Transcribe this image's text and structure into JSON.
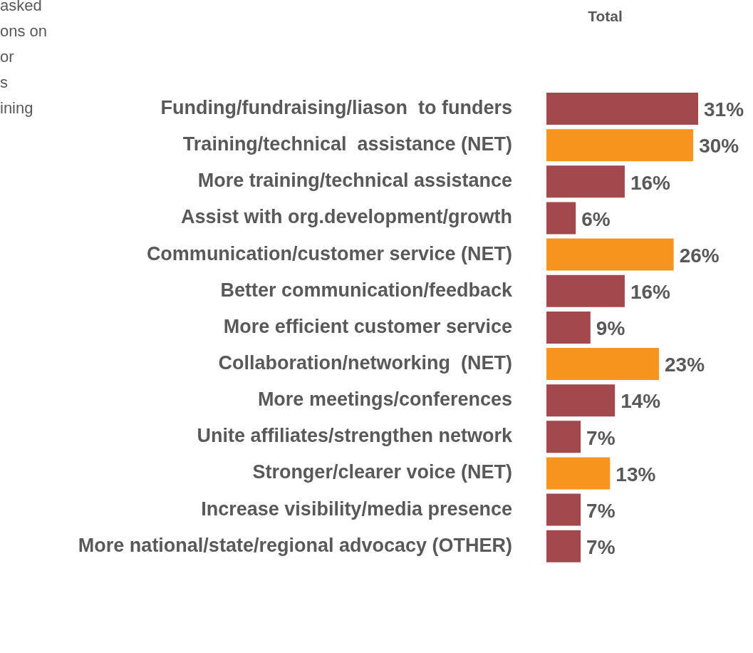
{
  "chart_data": {
    "type": "bar",
    "orientation": "horizontal",
    "title": "Total",
    "annotations": [
      "asked\nons on\nor\ns\nining"
    ],
    "categories": [
      "Funding/fundraising/liason  to funders",
      "Training/technical  assistance (NET)",
      "More training/technical assistance",
      "Assist with org.development/growth",
      "Communication/customer service (NET)",
      "Better communication/feedback",
      "More efficient customer service",
      "Collaboration/networking  (NET)",
      "More meetings/conferences",
      "Unite affiliates/strengthen network",
      "Stronger/clearer voice (NET)",
      "Increase visibility/media presence",
      "More national/state/regional advocacy (OTHER)"
    ],
    "values": [
      31,
      30,
      16,
      6,
      26,
      16,
      9,
      23,
      14,
      7,
      13,
      7,
      7
    ],
    "value_labels": [
      "31%",
      "30%",
      "16%",
      "6%",
      "26%",
      "16%",
      "9%",
      "23%",
      "14%",
      "7%",
      "13%",
      "7%",
      "7%"
    ],
    "colors": [
      "#a3484d",
      "#f7941d",
      "#a3484d",
      "#a3484d",
      "#f7941d",
      "#a3484d",
      "#a3484d",
      "#f7941d",
      "#a3484d",
      "#a3484d",
      "#f7941d",
      "#a3484d",
      "#a3484d"
    ],
    "grid": false,
    "legend": false,
    "tick_labels": "y"
  }
}
